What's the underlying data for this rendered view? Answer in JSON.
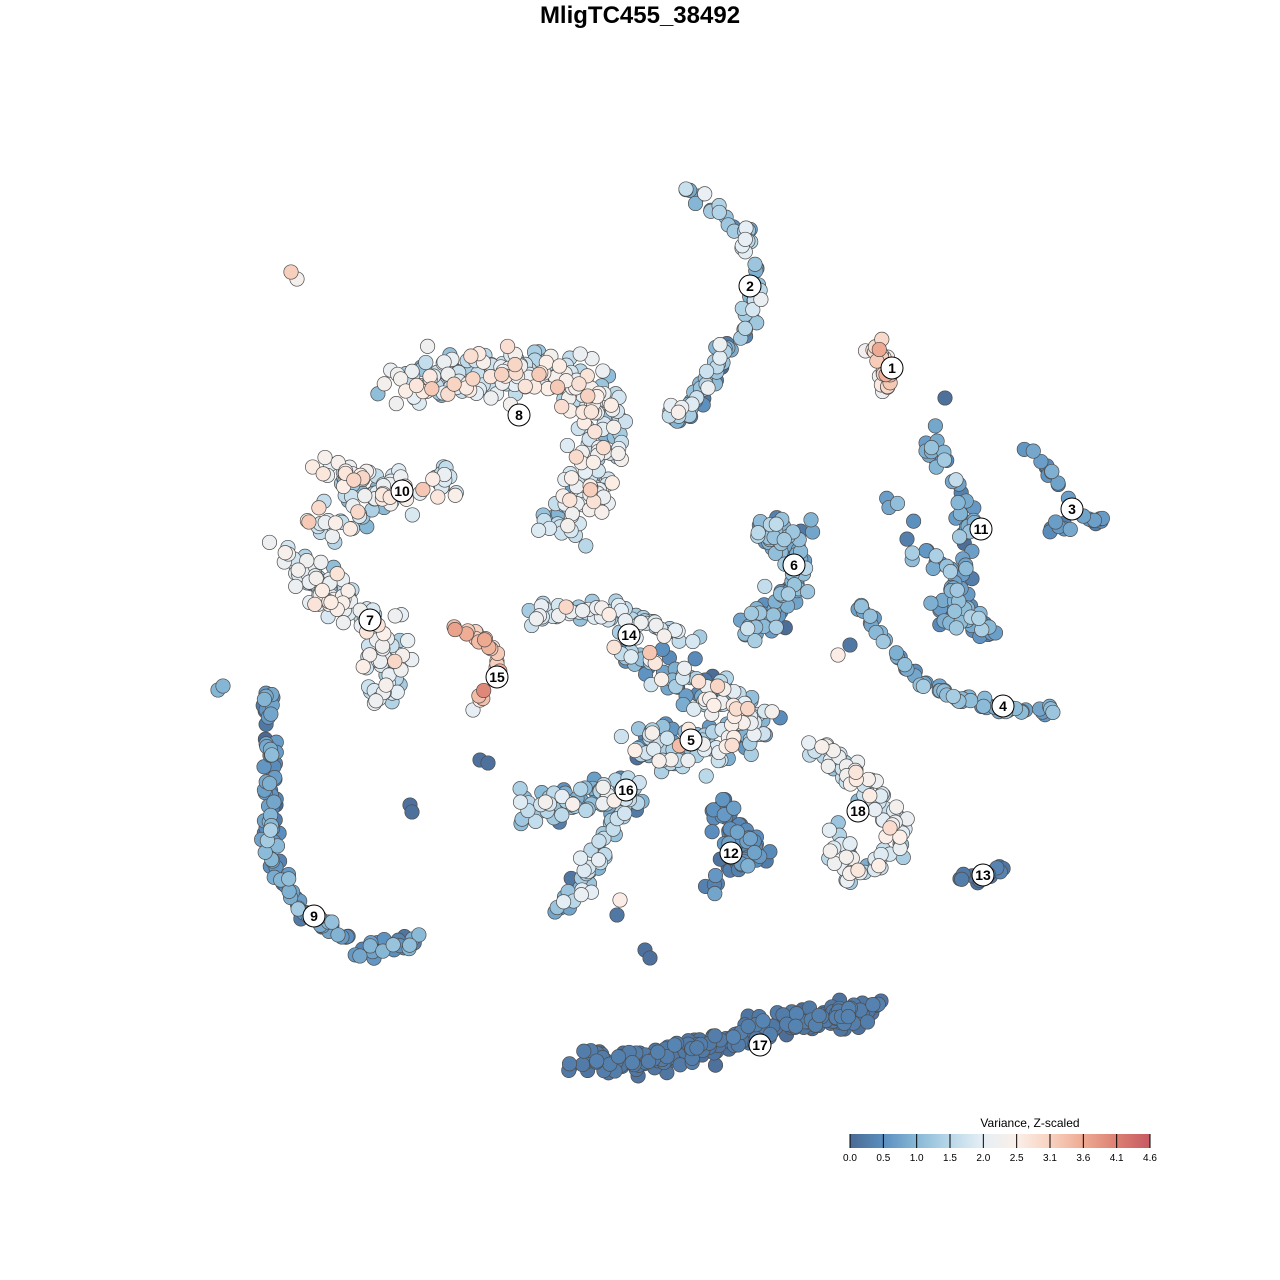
{
  "chart_data": {
    "type": "scatter",
    "title": "MligTC455_38492",
    "xlabel": "",
    "ylabel": "",
    "grid": false,
    "axes_visible": false,
    "legend": {
      "title": "Variance, Z-scaled",
      "placement": "bottom-right",
      "ticks": [
        "0.0",
        "0.5",
        "1.0",
        "1.5",
        "2.0",
        "2.5",
        "3.1",
        "3.6",
        "4.1",
        "4.6"
      ],
      "range": [
        0.0,
        4.6
      ],
      "colors": [
        "#4a6a94",
        "#5b8fbf",
        "#87b8d6",
        "#b9d8e9",
        "#e6eff5",
        "#fbefe8",
        "#f8d2c0",
        "#eeaa92",
        "#dc7f72",
        "#c65a63"
      ]
    },
    "clusters": [
      {
        "id": "1",
        "label": "1",
        "value": 2.7
      },
      {
        "id": "2",
        "label": "2",
        "value": 1.2
      },
      {
        "id": "3",
        "label": "3",
        "value": 0.6
      },
      {
        "id": "4",
        "label": "4",
        "value": 0.8
      },
      {
        "id": "5",
        "label": "5",
        "value": 1.4
      },
      {
        "id": "6",
        "label": "6",
        "value": 0.9
      },
      {
        "id": "7",
        "label": "7",
        "value": 2.0
      },
      {
        "id": "8",
        "label": "8",
        "value": 1.9
      },
      {
        "id": "9",
        "label": "9",
        "value": 0.6
      },
      {
        "id": "10",
        "label": "10",
        "value": 2.0
      },
      {
        "id": "11",
        "label": "11",
        "value": 0.8
      },
      {
        "id": "12",
        "label": "12",
        "value": 0.5
      },
      {
        "id": "13",
        "label": "13",
        "value": 0.2
      },
      {
        "id": "14",
        "label": "14",
        "value": 1.8
      },
      {
        "id": "15",
        "label": "15",
        "value": 3.3
      },
      {
        "id": "16",
        "label": "16",
        "value": 1.3
      },
      {
        "id": "17",
        "label": "17",
        "value": 0.2
      },
      {
        "id": "18",
        "label": "18",
        "value": 1.8
      }
    ]
  }
}
